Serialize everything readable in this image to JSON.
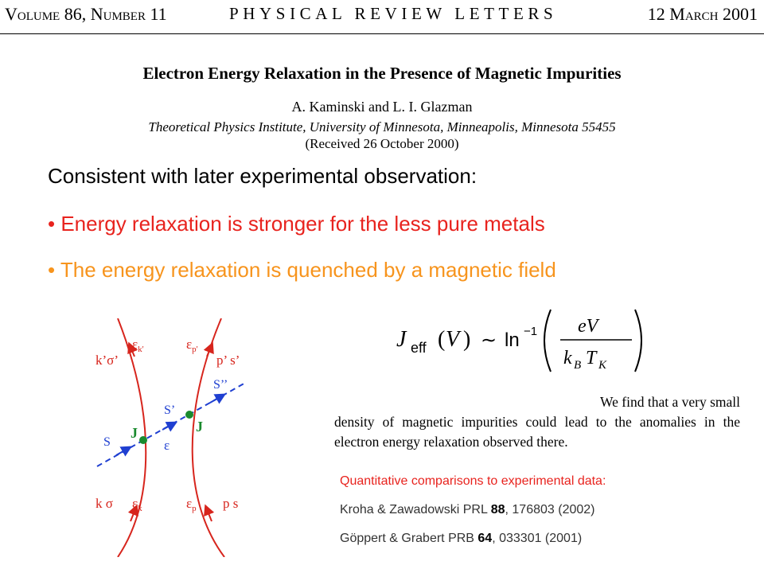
{
  "header": {
    "volume_label": "Volume 86, Number 11",
    "volume_initial_1": "V",
    "volume_rest_1": "OLUME",
    "volume_mid": " 86, ",
    "volume_initial_2": "N",
    "volume_rest_2": "UMBER",
    "volume_tail": " 11",
    "journal": "PHYSICAL REVIEW LETTERS",
    "date_label": "12 March 2001",
    "date_head": "12 ",
    "date_initial": "M",
    "date_rest": "ARCH",
    "date_tail": " 2001"
  },
  "paper": {
    "title": "Electron Energy Relaxation in the Presence of Magnetic Impurities",
    "authors": "A. Kaminski and L. I. Glazman",
    "affiliation": "Theoretical Physics Institute, University of Minnesota, Minneapolis, Minnesota 55455",
    "received": "(Received 26 October 2000)"
  },
  "slide": {
    "consistent": "Consistent with later experimental observation:",
    "bullet1": "• Energy relaxation is stronger for the less pure metals",
    "bullet2": "• The energy relaxation is quenched by a magnetic field"
  },
  "diagram": {
    "labels": {
      "eps_k_prime": "εk'",
      "k_sigma_prime": "k’σ’",
      "eps_p_prime": "εp'",
      "p_s_prime": "p’ s’",
      "s_double": "S’’",
      "s_prime": "S’",
      "s": "S",
      "j_left": "J",
      "j_right": "J",
      "eps": "ε",
      "k_sigma": "k σ",
      "eps_k": "εk",
      "eps_p": "εp",
      "p_s": "p  s"
    },
    "colors": {
      "line": "#d7251d",
      "dash": "#1f3fd1",
      "vertex": "#1a8a2e",
      "j_label": "#1a8a2e"
    }
  },
  "formula": {
    "J": "J",
    "eff": "eff",
    "lparen": "(",
    "V": "V",
    "rparen": ")",
    "sim": "∼",
    "ln": "ln",
    "exp": "−1",
    "num": "eV",
    "den_k": "k",
    "den_B": "B",
    "den_T": "T",
    "den_K": "K"
  },
  "quote": {
    "line1": "We find that a very small",
    "rest": "density of magnetic impurities could lead to the anomalies in the electron energy relaxation observed there."
  },
  "refs": {
    "title": "Quantitative comparisons to experimental data:",
    "ref1_a": "Kroha & Zawadowski PRL ",
    "ref1_vol": "88",
    "ref1_b": ", 176803 (2002)",
    "ref2_a": "Göppert & Grabert  PRB ",
    "ref2_vol": "64",
    "ref2_b": ", 033301 (2001)"
  },
  "colors": {
    "bullet1": "#e8231e",
    "bullet2": "#f7941d",
    "refs_title": "#e8231e"
  }
}
